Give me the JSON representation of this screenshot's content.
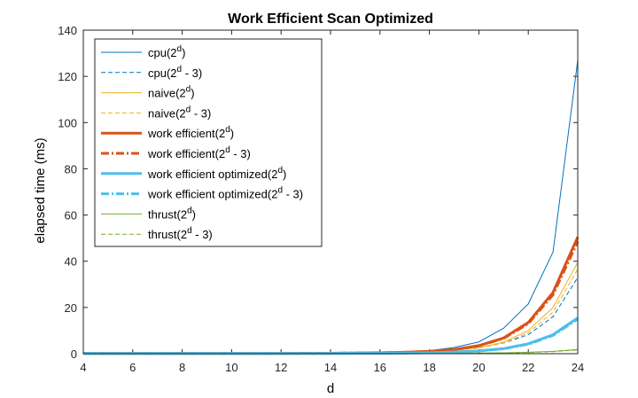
{
  "chart_data": {
    "type": "line",
    "title": "Work Efficient Scan Optimized",
    "xlabel": "d",
    "ylabel": "elapsed time (ms)",
    "xlim": [
      4,
      24
    ],
    "ylim": [
      0,
      140
    ],
    "x_ticks": [
      4,
      6,
      8,
      10,
      12,
      14,
      16,
      18,
      20,
      22,
      24
    ],
    "y_ticks": [
      0,
      20,
      40,
      60,
      80,
      100,
      120,
      140
    ],
    "grid": false,
    "legend_position": "top-left",
    "x": [
      4,
      5,
      6,
      7,
      8,
      9,
      10,
      11,
      12,
      13,
      14,
      15,
      16,
      17,
      18,
      19,
      20,
      21,
      22,
      23,
      24
    ],
    "series": [
      {
        "name": "cpu(2^d)",
        "legend_base": "cpu(2",
        "legend_suffix": ")",
        "color": "#0072BD",
        "width": 1,
        "dash": "solid",
        "values": [
          0.0,
          0.0,
          0.0,
          0.0,
          0.0,
          0.0,
          0.0,
          0.0,
          0.1,
          0.1,
          0.2,
          0.3,
          0.5,
          0.8,
          1.3,
          2.7,
          5.1,
          11.0,
          21.5,
          44.0,
          127.0
        ]
      },
      {
        "name": "cpu(2^d - 3)",
        "legend_base": "cpu(2",
        "legend_suffix": " - 3)",
        "color": "#0072BD",
        "width": 1,
        "dash": "dashed",
        "values": [
          0.0,
          0.0,
          0.0,
          0.0,
          0.0,
          0.0,
          0.0,
          0.0,
          0.0,
          0.1,
          0.1,
          0.2,
          0.3,
          0.5,
          0.8,
          1.5,
          2.6,
          4.6,
          8.2,
          16.0,
          33.0
        ]
      },
      {
        "name": "naive(2^d)",
        "legend_base": "naive(2",
        "legend_suffix": ")",
        "color": "#EDB120",
        "width": 1,
        "dash": "solid",
        "values": [
          0.0,
          0.0,
          0.0,
          0.0,
          0.0,
          0.0,
          0.0,
          0.0,
          0.0,
          0.1,
          0.1,
          0.2,
          0.3,
          0.5,
          0.8,
          1.4,
          2.6,
          5.0,
          10.0,
          20.0,
          39.5
        ]
      },
      {
        "name": "naive(2^d - 3)",
        "legend_base": "naive(2",
        "legend_suffix": " - 3)",
        "color": "#EDB120",
        "width": 1,
        "dash": "dashed",
        "values": [
          0.0,
          0.0,
          0.0,
          0.0,
          0.0,
          0.0,
          0.0,
          0.0,
          0.0,
          0.1,
          0.1,
          0.2,
          0.3,
          0.5,
          0.8,
          1.3,
          2.4,
          4.6,
          9.0,
          18.0,
          36.5
        ]
      },
      {
        "name": "work efficient(2^d)",
        "legend_base": "work efficient(2",
        "legend_suffix": ")",
        "color": "#D95319",
        "width": 3,
        "dash": "solid",
        "values": [
          0.1,
          0.1,
          0.1,
          0.1,
          0.1,
          0.1,
          0.1,
          0.1,
          0.1,
          0.2,
          0.2,
          0.3,
          0.4,
          0.6,
          1.0,
          1.8,
          3.5,
          6.8,
          13.5,
          26.5,
          50.5
        ]
      },
      {
        "name": "work efficient(2^d - 3)",
        "legend_base": "work efficient(2",
        "legend_suffix": " - 3)",
        "color": "#D95319",
        "width": 3,
        "dash": "dashdot",
        "values": [
          0.1,
          0.1,
          0.1,
          0.1,
          0.1,
          0.1,
          0.1,
          0.1,
          0.1,
          0.2,
          0.2,
          0.3,
          0.4,
          0.6,
          1.0,
          1.8,
          3.4,
          6.6,
          13.0,
          25.5,
          48.5
        ]
      },
      {
        "name": "work efficient optimized(2^d)",
        "legend_base": "work efficient optimized(2",
        "legend_suffix": ")",
        "color": "#4DBEEE",
        "width": 3,
        "dash": "solid",
        "values": [
          0.1,
          0.1,
          0.1,
          0.1,
          0.1,
          0.1,
          0.1,
          0.1,
          0.1,
          0.1,
          0.1,
          0.2,
          0.2,
          0.3,
          0.4,
          0.7,
          1.2,
          2.2,
          4.3,
          8.2,
          15.5
        ]
      },
      {
        "name": "work efficient optimized(2^d - 3)",
        "legend_base": "work efficient optimized(2",
        "legend_suffix": " - 3)",
        "color": "#4DBEEE",
        "width": 3,
        "dash": "dashdot",
        "values": [
          0.1,
          0.1,
          0.1,
          0.1,
          0.1,
          0.1,
          0.1,
          0.1,
          0.1,
          0.1,
          0.1,
          0.2,
          0.2,
          0.3,
          0.4,
          0.7,
          1.2,
          2.1,
          4.1,
          7.9,
          15.0
        ]
      },
      {
        "name": "thrust(2^d)",
        "legend_base": "thrust(2",
        "legend_suffix": ")",
        "color": "#77AC30",
        "width": 1,
        "dash": "solid",
        "values": [
          0.0,
          0.0,
          0.0,
          0.0,
          0.0,
          0.0,
          0.0,
          0.0,
          0.0,
          0.0,
          0.0,
          0.1,
          0.1,
          0.1,
          0.1,
          0.2,
          0.3,
          0.4,
          0.6,
          1.0,
          1.8
        ]
      },
      {
        "name": "thrust(2^d - 3)",
        "legend_base": "thrust(2",
        "legend_suffix": " - 3)",
        "color": "#77AC30",
        "width": 1,
        "dash": "dashed",
        "values": [
          0.0,
          0.0,
          0.0,
          0.0,
          0.0,
          0.0,
          0.0,
          0.0,
          0.0,
          0.0,
          0.0,
          0.1,
          0.1,
          0.1,
          0.1,
          0.2,
          0.2,
          0.3,
          0.5,
          0.9,
          1.6
        ]
      }
    ]
  }
}
